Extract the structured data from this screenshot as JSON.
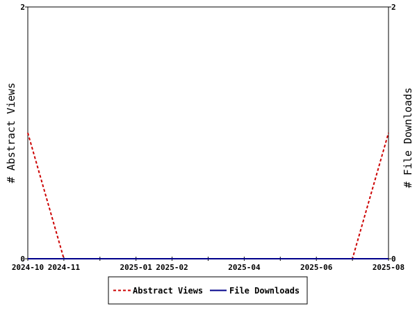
{
  "chart_data": {
    "type": "line",
    "x": [
      "2024-10",
      "2024-11",
      "2024-12",
      "2025-01",
      "2025-02",
      "2025-03",
      "2025-04",
      "2025-05",
      "2025-06",
      "2025-07",
      "2025-08"
    ],
    "x_tick_labels": [
      "2024-10",
      "2024-11",
      "",
      "2025-01",
      "2025-02",
      "",
      "2025-04",
      "",
      "2025-06",
      "",
      "2025-08"
    ],
    "series": [
      {
        "name": "Abstract Views",
        "axis": "left",
        "color": "#cc0000",
        "dash": "dashed",
        "values": [
          1,
          0,
          0,
          0,
          0,
          0,
          0,
          0,
          0,
          0,
          1
        ]
      },
      {
        "name": "File Downloads",
        "axis": "right",
        "color": "#00008b",
        "dash": "solid",
        "values": [
          0,
          0,
          0,
          0,
          0,
          0,
          0,
          0,
          0,
          0,
          0
        ]
      }
    ],
    "ylabel_left": "# Abstract Views",
    "ylabel_right": "# File Downloads",
    "ylim_left": [
      0,
      2
    ],
    "ylim_right": [
      0,
      2
    ],
    "yticks_left": [
      "0",
      "2"
    ],
    "yticks_right": [
      "0",
      "2"
    ],
    "grid": false,
    "legend_position": "bottom-center"
  }
}
